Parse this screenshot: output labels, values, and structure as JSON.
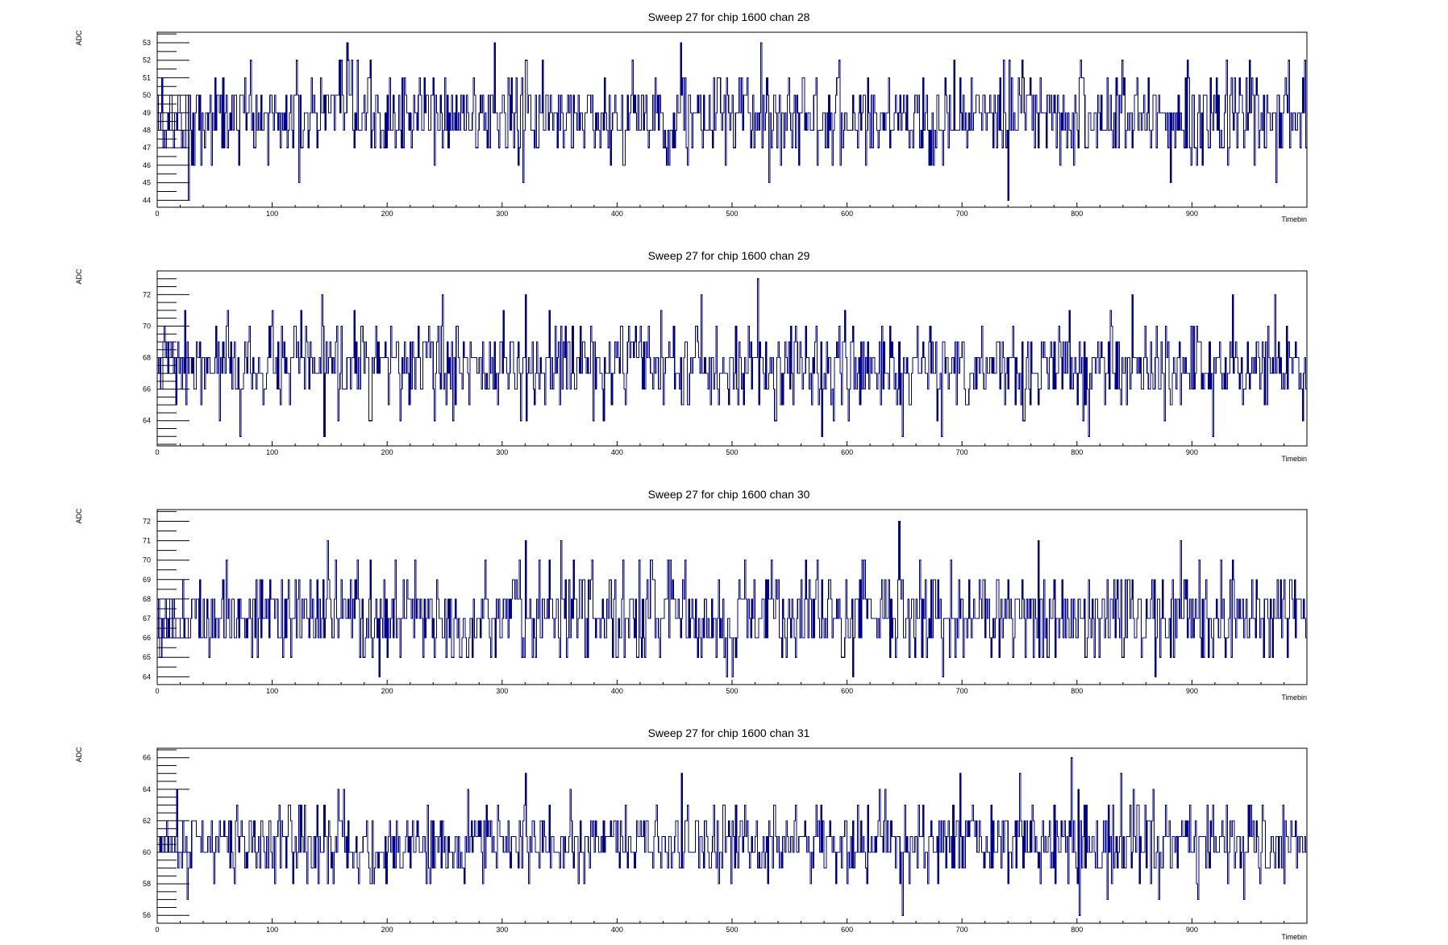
{
  "page": {
    "background": "#ffffff"
  },
  "style": {
    "line_color": "#00008b",
    "frame_color": "#000000"
  },
  "chart_data": [
    {
      "type": "line",
      "title": "Sweep 27 for chip 1600 chan 28",
      "xlabel": "Timebin",
      "ylabel": "ADC",
      "xlim": [
        0,
        1000
      ],
      "ylim": [
        43.6,
        53.6
      ],
      "x_ticks": [
        0,
        100,
        200,
        300,
        400,
        500,
        600,
        700,
        800,
        900
      ],
      "y_ticks": [
        44,
        45,
        46,
        47,
        48,
        49,
        50,
        51,
        52,
        53
      ],
      "grid": false,
      "series": [
        {
          "baseline": 48.8,
          "spread": 1.3,
          "min": 44,
          "max": 53,
          "spikes": [
            {
              "x": 27,
              "y": 44
            },
            {
              "x": 123,
              "y": 45
            },
            {
              "x": 165,
              "y": 53
            },
            {
              "x": 293,
              "y": 53
            },
            {
              "x": 455,
              "y": 53
            },
            {
              "x": 525,
              "y": 53
            },
            {
              "x": 740,
              "y": 44
            },
            {
              "x": 973,
              "y": 45
            },
            {
              "x": 998,
              "y": 52
            }
          ]
        }
      ]
    },
    {
      "type": "line",
      "title": "Sweep 27 for chip 1600 chan 29",
      "xlabel": "Timebin",
      "ylabel": "ADC",
      "xlim": [
        0,
        1000
      ],
      "ylim": [
        62.4,
        73.5
      ],
      "x_ticks": [
        0,
        100,
        200,
        300,
        400,
        500,
        600,
        700,
        800,
        900
      ],
      "y_ticks": [
        64,
        66,
        68,
        70,
        72
      ],
      "grid": false,
      "series": [
        {
          "baseline": 67.4,
          "spread": 1.4,
          "min": 63,
          "max": 73,
          "spikes": [
            {
              "x": 72,
              "y": 63
            },
            {
              "x": 145,
              "y": 63
            },
            {
              "x": 248,
              "y": 72
            },
            {
              "x": 522,
              "y": 73
            },
            {
              "x": 578,
              "y": 63
            },
            {
              "x": 648,
              "y": 63
            },
            {
              "x": 682,
              "y": 63
            },
            {
              "x": 810,
              "y": 63
            },
            {
              "x": 848,
              "y": 72
            },
            {
              "x": 918,
              "y": 63
            },
            {
              "x": 972,
              "y": 72
            }
          ]
        }
      ]
    },
    {
      "type": "line",
      "title": "Sweep 27 for chip 1600 chan 30",
      "xlabel": "Timebin",
      "ylabel": "ADC",
      "xlim": [
        0,
        1000
      ],
      "ylim": [
        63.6,
        72.6
      ],
      "x_ticks": [
        0,
        100,
        200,
        300,
        400,
        500,
        600,
        700,
        800,
        900
      ],
      "y_ticks": [
        64,
        65,
        66,
        67,
        68,
        69,
        70,
        71,
        72
      ],
      "grid": false,
      "series": [
        {
          "baseline": 67.2,
          "spread": 1.2,
          "min": 64,
          "max": 72,
          "spikes": [
            {
              "x": 193,
              "y": 64
            },
            {
              "x": 495,
              "y": 64
            },
            {
              "x": 500,
              "y": 64
            },
            {
              "x": 605,
              "y": 64
            },
            {
              "x": 645,
              "y": 72
            },
            {
              "x": 683,
              "y": 64
            },
            {
              "x": 868,
              "y": 64
            }
          ]
        }
      ]
    },
    {
      "type": "line",
      "title": "Sweep 27 for chip 1600 chan 31",
      "xlabel": "Timebin",
      "ylabel": "ADC",
      "xlim": [
        0,
        1000
      ],
      "ylim": [
        55.5,
        66.6
      ],
      "x_ticks": [
        0,
        100,
        200,
        300,
        400,
        500,
        600,
        700,
        800,
        900
      ],
      "y_ticks": [
        56,
        58,
        60,
        62,
        64,
        66
      ],
      "grid": false,
      "series": [
        {
          "baseline": 60.6,
          "spread": 1.3,
          "min": 56,
          "max": 66,
          "spikes": [
            {
              "x": 648,
              "y": 56
            },
            {
              "x": 698,
              "y": 65
            },
            {
              "x": 750,
              "y": 65
            },
            {
              "x": 795,
              "y": 66
            },
            {
              "x": 802,
              "y": 56
            },
            {
              "x": 838,
              "y": 65
            }
          ]
        }
      ]
    }
  ]
}
